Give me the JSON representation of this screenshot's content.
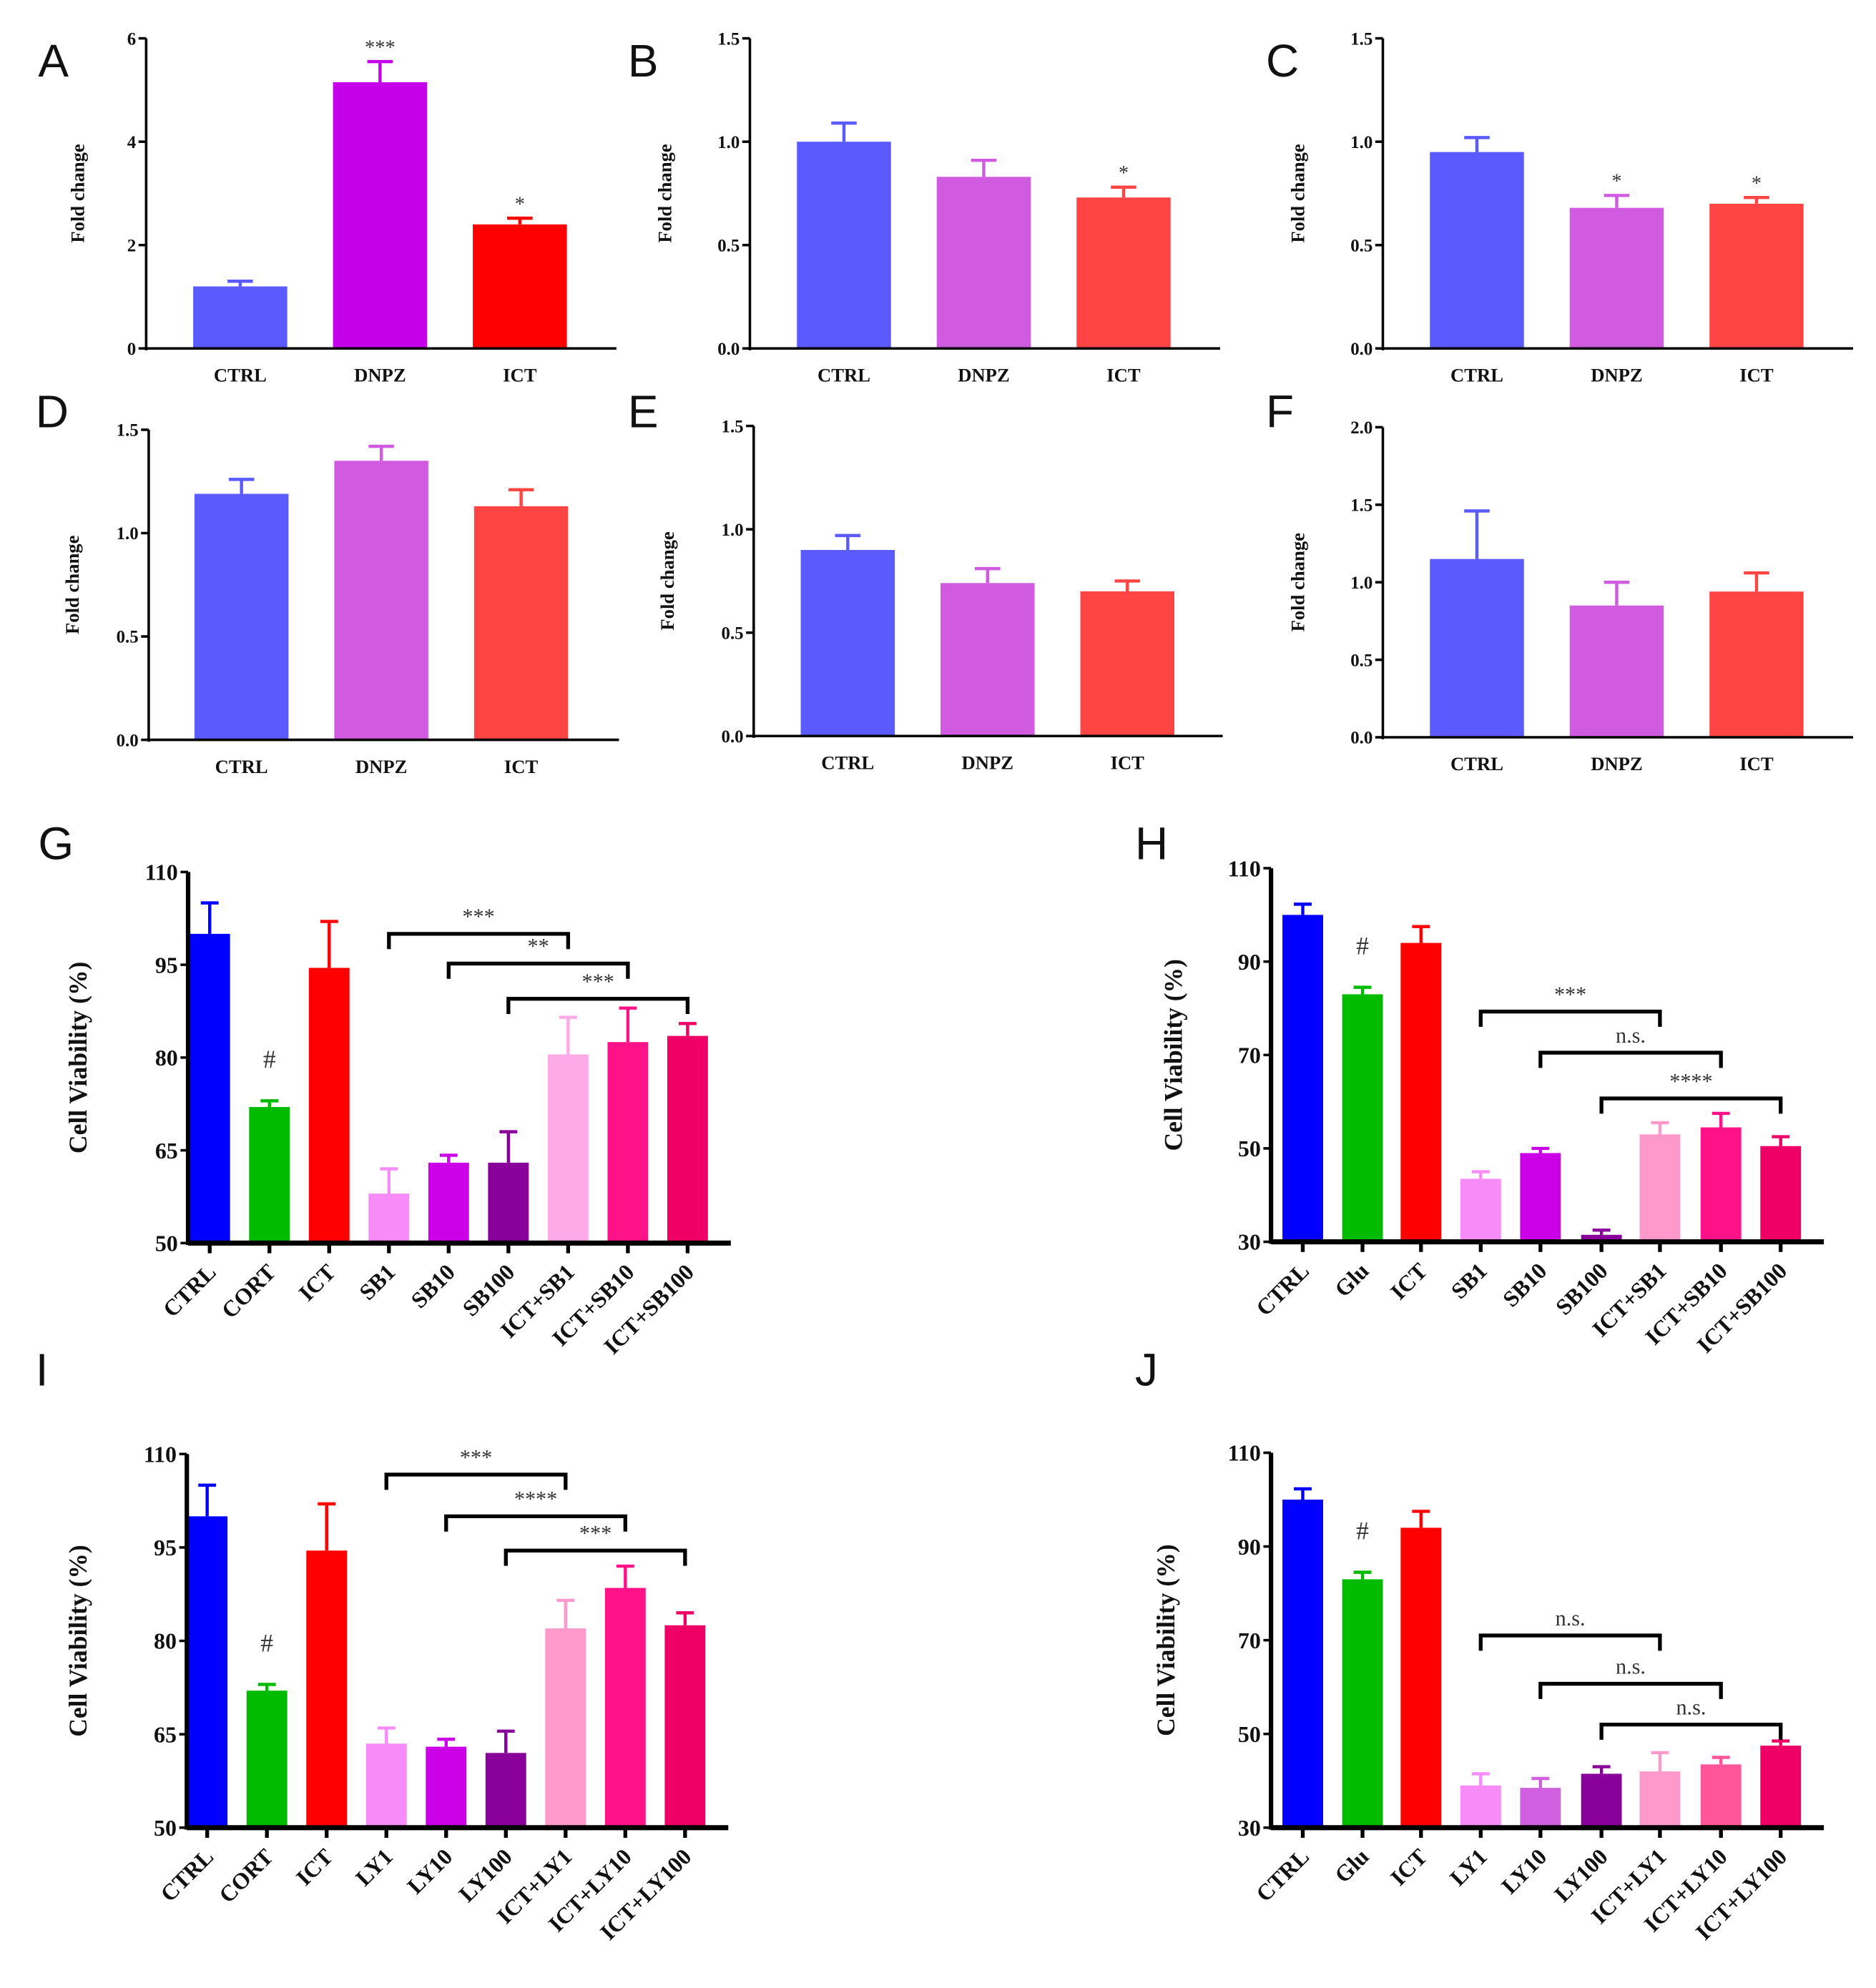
{
  "chart_data": [
    {
      "panel": "A",
      "type": "bar",
      "ylabel": "Fold change",
      "ylim": [
        0,
        6
      ],
      "yticks": [
        0,
        2,
        4,
        6
      ],
      "categories": [
        "CTRL",
        "DNPZ",
        "ICT"
      ],
      "values": [
        1.2,
        5.15,
        2.4
      ],
      "errors": [
        0.1,
        0.4,
        0.12
      ],
      "colors": [
        "#5a5aff",
        "#c400e8",
        "#ff0000"
      ],
      "annotations": [
        "",
        "***",
        "*"
      ],
      "brackets": []
    },
    {
      "panel": "B",
      "type": "bar",
      "ylabel": "Fold change",
      "ylim": [
        0,
        1.5
      ],
      "yticks": [
        "0.0",
        "0.5",
        "1.0",
        "1.5"
      ],
      "categories": [
        "CTRL",
        "DNPZ",
        "ICT"
      ],
      "values": [
        1.0,
        0.83,
        0.73
      ],
      "errors": [
        0.09,
        0.08,
        0.05
      ],
      "colors": [
        "#5a5aff",
        "#d05ae0",
        "#ff4444"
      ],
      "annotations": [
        "",
        "",
        "*"
      ],
      "brackets": []
    },
    {
      "panel": "C",
      "type": "bar",
      "ylabel": "Fold change",
      "ylim": [
        0,
        1.5
      ],
      "yticks": [
        "0.0",
        "0.5",
        "1.0",
        "1.5"
      ],
      "categories": [
        "CTRL",
        "DNPZ",
        "ICT"
      ],
      "values": [
        0.95,
        0.68,
        0.7
      ],
      "errors": [
        0.07,
        0.06,
        0.03
      ],
      "colors": [
        "#5a5aff",
        "#d05ae0",
        "#ff4444"
      ],
      "annotations": [
        "",
        "*",
        "*"
      ],
      "brackets": []
    },
    {
      "panel": "D",
      "type": "bar",
      "ylabel": "Fold change",
      "ylim": [
        0,
        1.5
      ],
      "yticks": [
        "0.0",
        "0.5",
        "1.0",
        "1.5"
      ],
      "categories": [
        "CTRL",
        "DNPZ",
        "ICT"
      ],
      "values": [
        1.19,
        1.35,
        1.13
      ],
      "errors": [
        0.07,
        0.07,
        0.08
      ],
      "colors": [
        "#5a5aff",
        "#d05ae0",
        "#ff4444"
      ],
      "annotations": [
        "",
        "",
        ""
      ],
      "brackets": []
    },
    {
      "panel": "E",
      "type": "bar",
      "ylabel": "Fold change",
      "ylim": [
        0,
        1.5
      ],
      "yticks": [
        "0.0",
        "0.5",
        "1.0",
        "1.5"
      ],
      "categories": [
        "CTRL",
        "DNPZ",
        "ICT"
      ],
      "values": [
        0.9,
        0.74,
        0.7
      ],
      "errors": [
        0.07,
        0.07,
        0.05
      ],
      "colors": [
        "#5a5aff",
        "#d05ae0",
        "#ff4444"
      ],
      "annotations": [
        "",
        "",
        ""
      ],
      "brackets": []
    },
    {
      "panel": "F",
      "type": "bar",
      "ylabel": "Fold change",
      "ylim": [
        0,
        2.0
      ],
      "yticks": [
        "0.0",
        "0.5",
        "1.0",
        "1.5",
        "2.0"
      ],
      "categories": [
        "CTRL",
        "DNPZ",
        "ICT"
      ],
      "values": [
        1.15,
        0.85,
        0.94
      ],
      "errors": [
        0.31,
        0.15,
        0.12
      ],
      "colors": [
        "#5a5aff",
        "#d05ae0",
        "#ff4444"
      ],
      "annotations": [
        "",
        "",
        ""
      ],
      "brackets": []
    },
    {
      "panel": "G",
      "type": "bar",
      "ylabel": "Cell Viability  (%)",
      "ylim": [
        50,
        110
      ],
      "yticks": [
        50,
        65,
        80,
        95,
        110
      ],
      "categories": [
        "CTRL",
        "CORT",
        "ICT",
        "SB1",
        "SB10",
        "SB100",
        "ICT+SB1",
        "ICT+SB10",
        "ICT+SB100"
      ],
      "values": [
        100,
        72,
        94.5,
        58,
        63,
        63,
        80.5,
        82.5,
        83.5
      ],
      "errors": [
        5,
        1,
        7.5,
        4,
        1.2,
        5,
        6,
        5.5,
        2
      ],
      "colors": [
        "#0000ff",
        "#00bb00",
        "#ff0000",
        "#f78cf9",
        "#cc00e6",
        "#880099",
        "#ffaae8",
        "#ff1188",
        "#ee0066"
      ],
      "annotations": [
        "",
        "#",
        "",
        "",
        "",
        "",
        "",
        "",
        ""
      ],
      "brackets": [
        {
          "from": 3,
          "to": 6,
          "y": 100,
          "label": "***"
        },
        {
          "from": 4,
          "to": 7,
          "y": 95.2,
          "label": "**"
        },
        {
          "from": 5,
          "to": 8,
          "y": 89.5,
          "label": "***"
        }
      ]
    },
    {
      "panel": "H",
      "type": "bar",
      "ylabel": "Cell Viability  (%)",
      "ylim": [
        30,
        110
      ],
      "yticks": [
        30,
        50,
        70,
        90,
        110
      ],
      "categories": [
        "CTRL",
        "Glu",
        "ICT",
        "SB1",
        "SB10",
        "SB100",
        "ICT+SB1",
        "ICT+SB10",
        "ICT+SB100"
      ],
      "values": [
        100,
        83,
        94,
        43.5,
        49,
        31.5,
        53,
        54.5,
        50.5
      ],
      "errors": [
        2.3,
        1.5,
        3.5,
        1.5,
        1,
        1,
        2.5,
        3,
        2
      ],
      "colors": [
        "#0000ff",
        "#00bb00",
        "#ff0000",
        "#f78cf9",
        "#cc00e6",
        "#880099",
        "#ff99cc",
        "#ff1188",
        "#ee0066"
      ],
      "annotations": [
        "",
        "#",
        "",
        "",
        "",
        "",
        "",
        "",
        ""
      ],
      "brackets": [
        {
          "from": 3,
          "to": 6,
          "y": 79.3,
          "label": "***"
        },
        {
          "from": 4,
          "to": 7,
          "y": 70.5,
          "label": "n.s."
        },
        {
          "from": 5,
          "to": 8,
          "y": 60.7,
          "label": "****"
        }
      ]
    },
    {
      "panel": "I",
      "type": "bar",
      "ylabel": "Cell Viability  (%)",
      "ylim": [
        50,
        110
      ],
      "yticks": [
        50,
        65,
        80,
        95,
        110
      ],
      "categories": [
        "CTRL",
        "CORT",
        "ICT",
        "LY1",
        "LY10",
        "LY100",
        "ICT+LY1",
        "ICT+LY10",
        "ICT+LY100"
      ],
      "values": [
        100,
        72,
        94.5,
        63.5,
        63,
        62,
        82,
        88.5,
        82.5
      ],
      "errors": [
        5,
        1,
        7.5,
        2.5,
        1.2,
        3.5,
        4.5,
        3.5,
        2
      ],
      "colors": [
        "#0000ff",
        "#00bb00",
        "#ff0000",
        "#f78cf9",
        "#cc00e6",
        "#880099",
        "#ff99cc",
        "#ff1188",
        "#ee0066"
      ],
      "annotations": [
        "",
        "#",
        "",
        "",
        "",
        "",
        "",
        "",
        ""
      ],
      "brackets": [
        {
          "from": 3,
          "to": 6,
          "y": 106.7,
          "label": "***"
        },
        {
          "from": 4,
          "to": 7,
          "y": 100,
          "label": "****"
        },
        {
          "from": 5,
          "to": 8,
          "y": 94.5,
          "label": "***"
        }
      ]
    },
    {
      "panel": "J",
      "type": "bar",
      "ylabel": "Cell Viability  (%)",
      "ylim": [
        30,
        110
      ],
      "yticks": [
        30,
        50,
        70,
        90,
        110
      ],
      "categories": [
        "CTRL",
        "Glu",
        "ICT",
        "LY1",
        "LY10",
        "LY100",
        "ICT+LY1",
        "ICT+LY10",
        "ICT+LY100"
      ],
      "values": [
        100,
        83,
        94,
        39,
        38.5,
        41.5,
        42,
        43.5,
        47.5
      ],
      "errors": [
        2.3,
        1.5,
        3.5,
        2.5,
        2,
        1.5,
        4,
        1.5,
        1
      ],
      "colors": [
        "#0000ff",
        "#00bb00",
        "#ff0000",
        "#f78cf9",
        "#d060e0",
        "#880099",
        "#ff99cc",
        "#ff5599",
        "#ee0066"
      ],
      "annotations": [
        "",
        "#",
        "",
        "",
        "",
        "",
        "",
        "",
        ""
      ],
      "brackets": [
        {
          "from": 3,
          "to": 6,
          "y": 71,
          "label": "n.s."
        },
        {
          "from": 4,
          "to": 7,
          "y": 60.7,
          "label": "n.s."
        },
        {
          "from": 5,
          "to": 8,
          "y": 52,
          "label": "n.s."
        }
      ]
    }
  ]
}
